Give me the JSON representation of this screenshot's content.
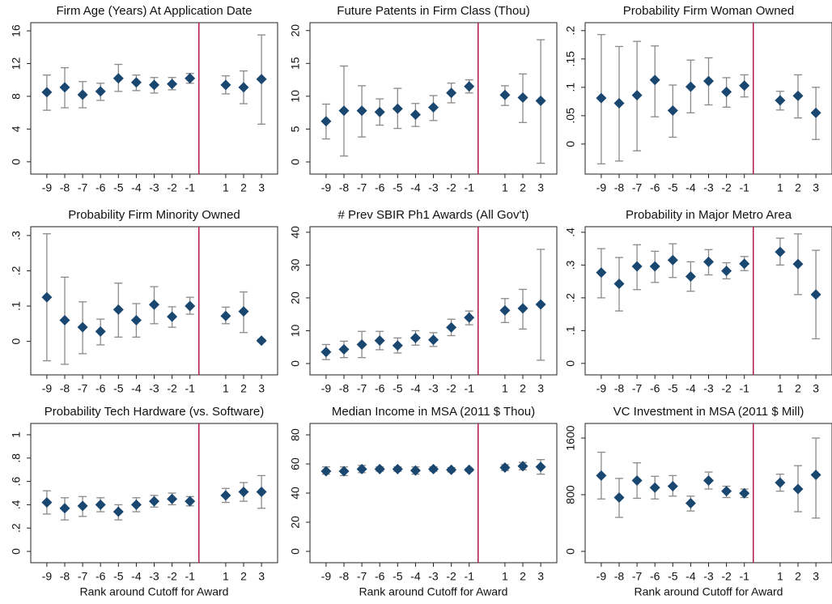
{
  "chart_data": [
    {
      "type": "errorbar",
      "title": "Firm Age (Years) At Application Date",
      "x": [
        -9,
        -8,
        -7,
        -6,
        -5,
        -4,
        -3,
        -2,
        -1,
        1,
        2,
        3
      ],
      "values": [
        8.5,
        9.1,
        8.2,
        8.6,
        10.2,
        9.7,
        9.4,
        9.5,
        10.2,
        9.4,
        9.1,
        10.1
      ],
      "lower": [
        6.3,
        6.6,
        6.6,
        7.5,
        8.6,
        8.7,
        8.4,
        8.8,
        9.6,
        8.3,
        7.1,
        4.6
      ],
      "upper": [
        10.6,
        11.5,
        9.8,
        9.6,
        11.9,
        10.6,
        10.3,
        10.3,
        10.8,
        10.5,
        11.1,
        15.5
      ],
      "xlim": [
        -9.9,
        3.9
      ],
      "xticks": [
        -9,
        -8,
        -7,
        -6,
        -5,
        -4,
        -3,
        -2,
        -1,
        1,
        2,
        3
      ],
      "ylim": [
        -1.5,
        17
      ],
      "yticks": [
        0,
        4,
        8,
        12,
        16
      ],
      "vline": -0.5,
      "vline_color": "#b3194a",
      "color": "#1a476f",
      "bar_color": "#8a8a8a"
    },
    {
      "type": "errorbar",
      "title": "Future Patents in Firm Class (Thou)",
      "x": [
        -9,
        -8,
        -7,
        -6,
        -5,
        -4,
        -3,
        -2,
        -1,
        1,
        2,
        3
      ],
      "values": [
        6.2,
        7.8,
        7.8,
        7.6,
        8.1,
        7.2,
        8.3,
        10.5,
        11.5,
        10.2,
        9.8,
        9.3
      ],
      "lower": [
        3.5,
        0.9,
        3.8,
        5.6,
        5.1,
        5.4,
        6.3,
        9,
        10.5,
        8.6,
        6,
        -0.2
      ],
      "upper": [
        8.8,
        14.6,
        11.6,
        9.6,
        11.2,
        8.9,
        10.1,
        12,
        12.5,
        11.6,
        13.4,
        18.6
      ],
      "xlim": [
        -9.9,
        3.9
      ],
      "xticks": [
        -9,
        -8,
        -7,
        -6,
        -5,
        -4,
        -3,
        -2,
        -1,
        1,
        2,
        3
      ],
      "ylim": [
        -1.85,
        21.2
      ],
      "yticks": [
        0,
        5,
        10,
        15,
        20
      ],
      "vline": -0.5,
      "vline_color": "#b3194a",
      "color": "#1a476f",
      "bar_color": "#8a8a8a"
    },
    {
      "type": "errorbar",
      "title": "Probability Firm Woman Owned",
      "x": [
        -9,
        -8,
        -7,
        -6,
        -5,
        -4,
        -3,
        -2,
        -1,
        1,
        2,
        3
      ],
      "values": [
        0.081,
        0.072,
        0.086,
        0.113,
        0.059,
        0.101,
        0.111,
        0.092,
        0.103,
        0.077,
        0.085,
        0.055
      ],
      "lower": [
        -0.035,
        -0.03,
        -0.012,
        0.048,
        0.012,
        0.055,
        0.069,
        0.065,
        0.083,
        0.06,
        0.046,
        0.008
      ],
      "upper": [
        0.193,
        0.172,
        0.181,
        0.173,
        0.104,
        0.148,
        0.152,
        0.117,
        0.122,
        0.093,
        0.122,
        0.1
      ],
      "xlim": [
        -9.9,
        3.9
      ],
      "xticks": [
        -9,
        -8,
        -7,
        -6,
        -5,
        -4,
        -3,
        -2,
        -1,
        1,
        2,
        3
      ],
      "ylim": [
        -0.053,
        0.214
      ],
      "yticks": [
        0,
        {
          "value": 0.05,
          "label": ".05"
        },
        {
          "value": 0.1,
          "label": ".1"
        },
        {
          "value": 0.15,
          "label": ".15"
        },
        {
          "value": 0.2,
          "label": ".2"
        }
      ],
      "vline": -0.5,
      "vline_color": "#b3194a",
      "color": "#1a476f",
      "bar_color": "#8a8a8a"
    },
    {
      "type": "errorbar",
      "title": "Probability Firm Minority Owned",
      "x": [
        -9,
        -8,
        -7,
        -6,
        -5,
        -4,
        -3,
        -2,
        -1,
        1,
        2,
        3
      ],
      "values": [
        0.125,
        0.06,
        0.04,
        0.028,
        0.09,
        0.06,
        0.104,
        0.07,
        0.1,
        0.072,
        0.085,
        0.002
      ],
      "lower": [
        -0.055,
        -0.065,
        -0.035,
        -0.01,
        0.012,
        0.012,
        0.05,
        0.04,
        0.077,
        0.05,
        0.025,
        -0.002
      ],
      "upper": [
        0.305,
        0.182,
        0.112,
        0.063,
        0.165,
        0.107,
        0.155,
        0.098,
        0.125,
        0.097,
        0.14,
        0.006
      ],
      "xlim": [
        -9.9,
        3.9
      ],
      "xticks": [
        -9,
        -8,
        -7,
        -6,
        -5,
        -4,
        -3,
        -2,
        -1,
        1,
        2,
        3
      ],
      "ylim": [
        -0.095,
        0.325
      ],
      "yticks": [
        0,
        {
          "value": 0.1,
          "label": ".1"
        },
        {
          "value": 0.2,
          "label": ".2"
        },
        {
          "value": 0.3,
          "label": ".3"
        }
      ],
      "vline": -0.5,
      "vline_color": "#b3194a",
      "color": "#1a476f",
      "bar_color": "#8a8a8a"
    },
    {
      "type": "errorbar",
      "title": "# Prev SBIR Ph1 Awards (All Gov't)",
      "x": [
        -9,
        -8,
        -7,
        -6,
        -5,
        -4,
        -3,
        -2,
        -1,
        1,
        2,
        3
      ],
      "values": [
        3.5,
        4.3,
        5.8,
        7,
        5.5,
        7.8,
        7.2,
        11,
        14,
        16.2,
        16.8,
        18
      ],
      "lower": [
        1.2,
        1.8,
        1.8,
        4.2,
        3.2,
        5.6,
        5.2,
        8.5,
        11.8,
        12.5,
        10.5,
        1
      ],
      "upper": [
        5.8,
        6.8,
        9.8,
        9.8,
        7.8,
        10,
        9.4,
        13.5,
        16,
        19.8,
        22.6,
        34.8
      ],
      "xlim": [
        -9.9,
        3.9
      ],
      "xticks": [
        -9,
        -8,
        -7,
        -6,
        -5,
        -4,
        -3,
        -2,
        -1,
        1,
        2,
        3
      ],
      "ylim": [
        -3.46,
        41.7
      ],
      "yticks": [
        0,
        10,
        20,
        30,
        40
      ],
      "vline": -0.5,
      "vline_color": "#b3194a",
      "color": "#1a476f",
      "bar_color": "#8a8a8a"
    },
    {
      "type": "errorbar",
      "title": "Probability in Major Metro Area",
      "x": [
        -9,
        -8,
        -7,
        -6,
        -5,
        -4,
        -3,
        -2,
        -1,
        1,
        2,
        3
      ],
      "values": [
        0.277,
        0.243,
        0.296,
        0.296,
        0.315,
        0.265,
        0.31,
        0.282,
        0.304,
        0.34,
        0.303,
        0.21
      ],
      "lower": [
        0.2,
        0.16,
        0.225,
        0.247,
        0.262,
        0.22,
        0.27,
        0.258,
        0.283,
        0.3,
        0.21,
        0.075
      ],
      "upper": [
        0.35,
        0.323,
        0.362,
        0.342,
        0.365,
        0.31,
        0.347,
        0.307,
        0.326,
        0.382,
        0.395,
        0.345
      ],
      "xlim": [
        -9.9,
        3.9
      ],
      "xticks": [
        -9,
        -8,
        -7,
        -6,
        -5,
        -4,
        -3,
        -2,
        -1,
        1,
        2,
        3
      ],
      "ylim": [
        -0.035,
        0.417
      ],
      "yticks": [
        0,
        {
          "value": 0.1,
          "label": ".1"
        },
        {
          "value": 0.2,
          "label": ".2"
        },
        {
          "value": 0.3,
          "label": ".3"
        },
        {
          "value": 0.4,
          "label": ".4"
        }
      ],
      "vline": -0.5,
      "vline_color": "#b3194a",
      "color": "#1a476f",
      "bar_color": "#8a8a8a"
    },
    {
      "type": "errorbar",
      "title": "Probability Tech Hardware (vs. Software)",
      "xlabel": "Rank around Cutoff for Award",
      "x": [
        -9,
        -8,
        -7,
        -6,
        -5,
        -4,
        -3,
        -2,
        -1,
        1,
        2,
        3
      ],
      "values": [
        0.42,
        0.37,
        0.39,
        0.4,
        0.34,
        0.4,
        0.43,
        0.45,
        0.43,
        0.48,
        0.51,
        0.51
      ],
      "lower": [
        0.32,
        0.27,
        0.3,
        0.34,
        0.27,
        0.34,
        0.38,
        0.4,
        0.39,
        0.42,
        0.43,
        0.37
      ],
      "upper": [
        0.52,
        0.46,
        0.47,
        0.46,
        0.4,
        0.46,
        0.48,
        0.5,
        0.47,
        0.54,
        0.59,
        0.65
      ],
      "xlim": [
        -9.9,
        3.9
      ],
      "xticks": [
        -9,
        -8,
        -7,
        -6,
        -5,
        -4,
        -3,
        -2,
        -1,
        1,
        2,
        3
      ],
      "ylim": [
        -0.097,
        1.097
      ],
      "yticks": [
        0,
        {
          "value": 0.2,
          "label": ".2"
        },
        {
          "value": 0.4,
          "label": ".4"
        },
        {
          "value": 0.6,
          "label": ".6"
        },
        {
          "value": 0.8,
          "label": ".8"
        },
        1
      ],
      "vline": -0.5,
      "vline_color": "#b3194a",
      "color": "#1a476f",
      "bar_color": "#8a8a8a"
    },
    {
      "type": "errorbar",
      "title": "Median Income in MSA (2011 $ Thou)",
      "xlabel": "Rank around Cutoff for Award",
      "x": [
        -9,
        -8,
        -7,
        -6,
        -5,
        -4,
        -3,
        -2,
        -1,
        1,
        2,
        3
      ],
      "values": [
        55,
        55,
        56.5,
        56.5,
        56.5,
        55.5,
        56.5,
        56,
        56,
        57.5,
        58.5,
        58
      ],
      "lower": [
        53,
        52,
        54,
        55,
        55,
        53,
        55,
        54.5,
        55,
        55.5,
        56,
        53
      ],
      "upper": [
        58,
        58,
        59,
        58,
        58,
        58,
        58,
        57.5,
        57,
        59.5,
        61,
        63
      ],
      "xlim": [
        -9.9,
        3.9
      ],
      "xticks": [
        -9,
        -8,
        -7,
        -6,
        -5,
        -4,
        -3,
        -2,
        -1,
        1,
        2,
        3
      ],
      "ylim": [
        -7.8,
        87.8
      ],
      "yticks": [
        0,
        20,
        40,
        60,
        80
      ],
      "vline": -0.5,
      "vline_color": "#b3194a",
      "color": "#1a476f",
      "bar_color": "#8a8a8a"
    },
    {
      "type": "errorbar",
      "title": "VC Investment in MSA (2011 $ Mill)",
      "xlabel": "Rank around Cutoff for Award",
      "x": [
        -9,
        -8,
        -7,
        -6,
        -5,
        -4,
        -3,
        -2,
        -1,
        1,
        2,
        3
      ],
      "values": [
        1070,
        760,
        1000,
        900,
        920,
        680,
        1000,
        850,
        820,
        970,
        880,
        1080
      ],
      "lower": [
        740,
        480,
        750,
        740,
        780,
        570,
        880,
        760,
        760,
        850,
        560,
        470
      ],
      "upper": [
        1400,
        1030,
        1250,
        1060,
        1070,
        780,
        1120,
        920,
        880,
        1090,
        1210,
        1600
      ],
      "xlim": [
        -9.9,
        3.9
      ],
      "xticks": [
        -9,
        -8,
        -7,
        -6,
        -5,
        -4,
        -3,
        -2,
        -1,
        1,
        2,
        3
      ],
      "ylim": [
        -160,
        1806
      ],
      "yticks": [
        0,
        800,
        1600
      ],
      "vline": -0.5,
      "vline_color": "#b3194a",
      "color": "#1a476f",
      "bar_color": "#8a8a8a"
    }
  ]
}
